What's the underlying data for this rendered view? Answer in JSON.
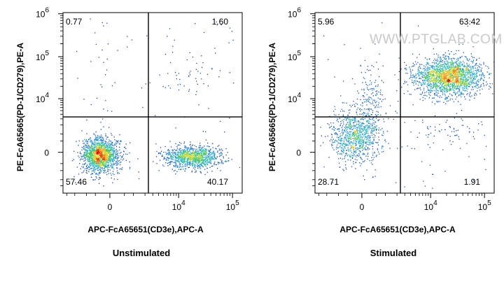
{
  "chart_data": [
    {
      "type": "scatter",
      "plot_kind": "flow-cytometry density dot plot (quadrant gates)",
      "title": "Unstimulated",
      "xlabel": "APC-FcA65651(CD3e),APC-A",
      "ylabel": "PE-FcA65665(PD-1/CD279),PE-A",
      "x_scale": "biexponential",
      "y_scale": "biexponential",
      "x_ticks": [
        {
          "value": "0",
          "label": "0"
        },
        {
          "value": "1e4",
          "base": "10",
          "exp": "4"
        },
        {
          "value": "1e5",
          "base": "10",
          "exp": "5"
        }
      ],
      "y_ticks": [
        {
          "value": "0",
          "label": "0"
        },
        {
          "value": "1e4",
          "base": "10",
          "exp": "4"
        },
        {
          "value": "1e5",
          "base": "10",
          "exp": "5"
        },
        {
          "value": "1e6",
          "base": "10",
          "exp": "6"
        }
      ],
      "quadrants": {
        "upper_left": "0.77",
        "upper_right": "1.60",
        "lower_left": "57.46",
        "lower_right": "40.17"
      },
      "populations": [
        {
          "name": "CD3-PD1-",
          "cx": -300,
          "cy": -100,
          "share": 0.57
        },
        {
          "name": "CD3+PD1-",
          "cx": 18000,
          "cy": -150,
          "share": 0.4
        },
        {
          "name": "CD3+PD1+",
          "cx": 15000,
          "cy": 30000,
          "share": 0.016
        },
        {
          "name": "CD3-PD1+",
          "cx": -200,
          "cy": 15000,
          "share": 0.008
        }
      ],
      "grid": false,
      "legend": "none"
    },
    {
      "type": "scatter",
      "plot_kind": "flow-cytometry density dot plot (quadrant gates)",
      "title": "Stimulated",
      "xlabel": "APC-FcA65651(CD3e),APC-A",
      "ylabel": "PE-FcA65665(PD-1/CD279),PE-A",
      "x_scale": "biexponential",
      "y_scale": "biexponential",
      "x_ticks": [
        {
          "value": "0",
          "label": "0"
        },
        {
          "value": "1e4",
          "base": "10",
          "exp": "4"
        },
        {
          "value": "1e5",
          "base": "10",
          "exp": "5"
        }
      ],
      "y_ticks": [
        {
          "value": "0",
          "label": "0"
        },
        {
          "value": "1e4",
          "base": "10",
          "exp": "4"
        },
        {
          "value": "1e5",
          "base": "10",
          "exp": "5"
        },
        {
          "value": "1e6",
          "base": "10",
          "exp": "6"
        }
      ],
      "quadrants": {
        "upper_left": "5.96",
        "upper_right": "63.42",
        "lower_left": "28.71",
        "lower_right": "1.91"
      },
      "populations": [
        {
          "name": "CD3-PD1-",
          "cx": -200,
          "cy": 800,
          "share": 0.29
        },
        {
          "name": "CD3+PD1+",
          "cx": 22000,
          "cy": 35000,
          "share": 0.63
        },
        {
          "name": "CD3-PD1+",
          "cx": 200,
          "cy": 8000,
          "share": 0.06
        },
        {
          "name": "CD3+PD1-",
          "cx": 20000,
          "cy": 1500,
          "share": 0.02
        }
      ],
      "watermark": "WWW.PTGLAB.COM",
      "grid": false,
      "legend": "none"
    }
  ]
}
